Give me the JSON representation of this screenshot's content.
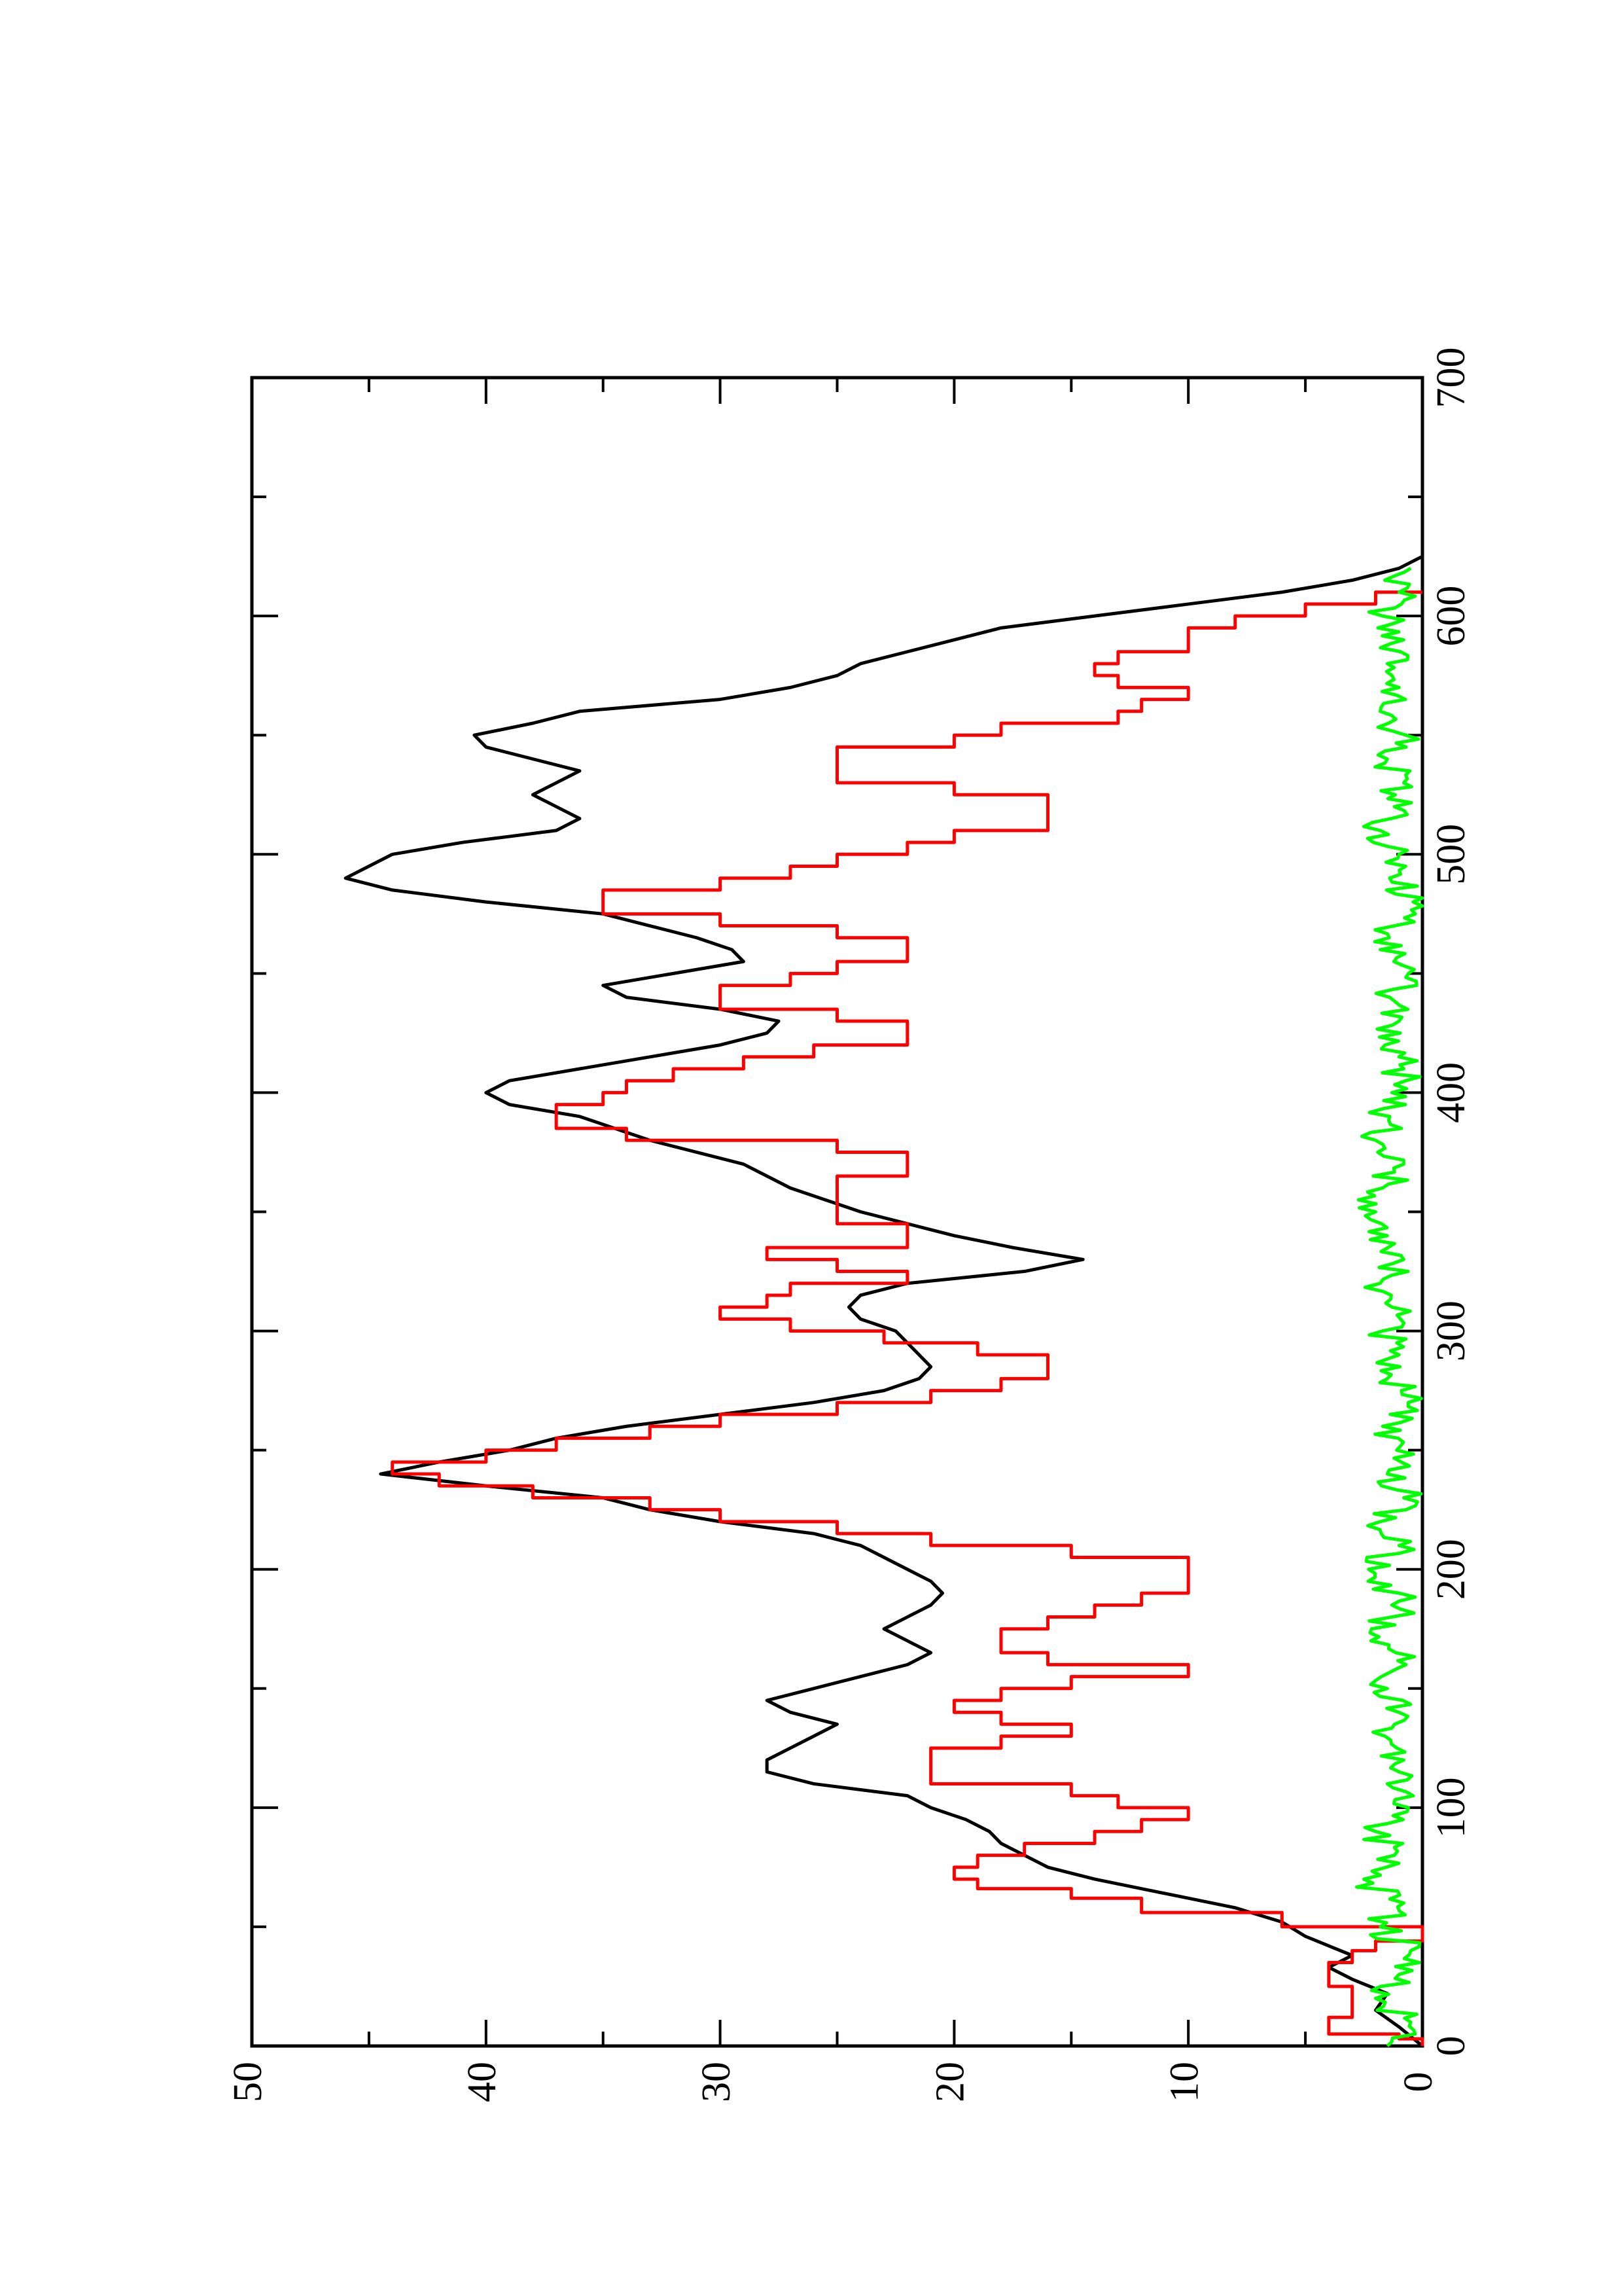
{
  "chart_data": {
    "type": "line",
    "orientation": "rotated-90-ccw",
    "title": "",
    "xlabel": "",
    "ylabel": "",
    "xlim": [
      0,
      700
    ],
    "ylim": [
      0,
      50
    ],
    "x_ticks": [
      0,
      100,
      200,
      300,
      400,
      500,
      600,
      700
    ],
    "y_ticks": [
      0,
      10,
      20,
      30,
      40,
      50
    ],
    "grid": false,
    "legend": "none",
    "series": [
      {
        "color": "#000000",
        "style": "line",
        "points": [
          [
            0,
            0
          ],
          [
            8,
            1
          ],
          [
            15,
            2
          ],
          [
            22,
            1.5
          ],
          [
            28,
            3
          ],
          [
            33,
            4
          ],
          [
            38,
            3
          ],
          [
            42,
            4
          ],
          [
            46,
            5
          ],
          [
            52,
            6
          ],
          [
            58,
            8
          ],
          [
            62,
            10
          ],
          [
            66,
            12
          ],
          [
            70,
            14
          ],
          [
            75,
            16
          ],
          [
            80,
            17
          ],
          [
            85,
            18
          ],
          [
            90,
            18.5
          ],
          [
            95,
            19.5
          ],
          [
            100,
            21
          ],
          [
            105,
            22
          ],
          [
            110,
            26
          ],
          [
            115,
            28
          ],
          [
            120,
            28
          ],
          [
            125,
            27
          ],
          [
            130,
            26
          ],
          [
            135,
            25
          ],
          [
            140,
            27
          ],
          [
            145,
            28
          ],
          [
            150,
            26
          ],
          [
            155,
            24
          ],
          [
            160,
            22
          ],
          [
            165,
            21
          ],
          [
            170,
            22
          ],
          [
            175,
            23
          ],
          [
            180,
            22
          ],
          [
            185,
            21
          ],
          [
            190,
            20.5
          ],
          [
            195,
            21
          ],
          [
            200,
            22
          ],
          [
            205,
            23
          ],
          [
            210,
            24
          ],
          [
            215,
            26
          ],
          [
            220,
            30
          ],
          [
            225,
            33
          ],
          [
            230,
            35
          ],
          [
            235,
            40
          ],
          [
            240,
            44.5
          ],
          [
            245,
            42
          ],
          [
            250,
            39
          ],
          [
            255,
            37
          ],
          [
            260,
            34
          ],
          [
            265,
            30
          ],
          [
            270,
            26
          ],
          [
            275,
            23
          ],
          [
            280,
            21.5
          ],
          [
            285,
            21
          ],
          [
            290,
            21.5
          ],
          [
            295,
            22
          ],
          [
            300,
            22.5
          ],
          [
            305,
            24
          ],
          [
            310,
            24.5
          ],
          [
            315,
            24
          ],
          [
            320,
            22
          ],
          [
            325,
            17
          ],
          [
            330,
            14.5
          ],
          [
            335,
            17.5
          ],
          [
            340,
            20
          ],
          [
            345,
            22
          ],
          [
            350,
            24
          ],
          [
            360,
            27
          ],
          [
            370,
            29
          ],
          [
            380,
            33
          ],
          [
            390,
            36
          ],
          [
            395,
            39
          ],
          [
            400,
            40
          ],
          [
            405,
            39
          ],
          [
            410,
            36
          ],
          [
            415,
            33
          ],
          [
            420,
            30
          ],
          [
            425,
            28
          ],
          [
            430,
            27.5
          ],
          [
            435,
            30
          ],
          [
            440,
            34
          ],
          [
            445,
            35
          ],
          [
            450,
            32
          ],
          [
            455,
            29
          ],
          [
            460,
            29.5
          ],
          [
            465,
            31
          ],
          [
            470,
            33
          ],
          [
            475,
            35
          ],
          [
            480,
            40
          ],
          [
            485,
            44
          ],
          [
            490,
            46
          ],
          [
            495,
            45
          ],
          [
            500,
            44
          ],
          [
            505,
            41
          ],
          [
            510,
            37
          ],
          [
            515,
            36
          ],
          [
            520,
            37
          ],
          [
            525,
            38
          ],
          [
            530,
            37
          ],
          [
            535,
            36
          ],
          [
            540,
            38
          ],
          [
            545,
            40
          ],
          [
            550,
            40.5
          ],
          [
            555,
            38
          ],
          [
            560,
            36
          ],
          [
            565,
            30
          ],
          [
            570,
            27
          ],
          [
            575,
            25
          ],
          [
            580,
            24
          ],
          [
            585,
            22
          ],
          [
            590,
            20
          ],
          [
            595,
            18
          ],
          [
            600,
            14
          ],
          [
            605,
            10
          ],
          [
            610,
            6
          ],
          [
            615,
            3
          ],
          [
            620,
            1
          ],
          [
            625,
            0
          ]
        ]
      },
      {
        "color": "#ff0000",
        "style": "step",
        "points": [
          [
            0,
            0
          ],
          [
            3,
            1
          ],
          [
            5,
            4
          ],
          [
            12,
            3
          ],
          [
            25,
            4
          ],
          [
            35,
            3
          ],
          [
            40,
            2
          ],
          [
            44,
            0
          ],
          [
            50,
            6
          ],
          [
            56,
            12
          ],
          [
            62,
            15
          ],
          [
            66,
            19
          ],
          [
            70,
            20
          ],
          [
            75,
            19
          ],
          [
            80,
            17
          ],
          [
            85,
            14
          ],
          [
            90,
            12
          ],
          [
            95,
            10
          ],
          [
            100,
            13
          ],
          [
            105,
            15
          ],
          [
            110,
            21
          ],
          [
            120,
            21
          ],
          [
            125,
            18
          ],
          [
            130,
            15
          ],
          [
            135,
            18
          ],
          [
            140,
            20
          ],
          [
            145,
            18
          ],
          [
            150,
            15
          ],
          [
            155,
            10
          ],
          [
            160,
            16
          ],
          [
            165,
            18
          ],
          [
            175,
            16
          ],
          [
            180,
            14
          ],
          [
            185,
            12
          ],
          [
            190,
            10
          ],
          [
            200,
            10
          ],
          [
            205,
            15
          ],
          [
            210,
            21
          ],
          [
            215,
            25
          ],
          [
            220,
            30
          ],
          [
            225,
            33
          ],
          [
            230,
            38
          ],
          [
            235,
            42
          ],
          [
            240,
            44
          ],
          [
            245,
            40
          ],
          [
            250,
            37
          ],
          [
            255,
            33
          ],
          [
            260,
            30
          ],
          [
            265,
            25
          ],
          [
            270,
            21
          ],
          [
            275,
            18
          ],
          [
            280,
            16
          ],
          [
            285,
            16
          ],
          [
            290,
            19
          ],
          [
            295,
            23
          ],
          [
            300,
            27
          ],
          [
            305,
            30
          ],
          [
            310,
            28
          ],
          [
            315,
            27
          ],
          [
            320,
            22
          ],
          [
            325,
            25
          ],
          [
            330,
            28
          ],
          [
            335,
            22
          ],
          [
            340,
            22
          ],
          [
            345,
            25
          ],
          [
            350,
            25
          ],
          [
            360,
            25
          ],
          [
            365,
            22
          ],
          [
            370,
            22
          ],
          [
            375,
            25
          ],
          [
            380,
            34
          ],
          [
            385,
            37
          ],
          [
            390,
            37
          ],
          [
            395,
            35
          ],
          [
            400,
            34
          ],
          [
            405,
            32
          ],
          [
            410,
            29
          ],
          [
            415,
            26
          ],
          [
            420,
            22
          ],
          [
            425,
            22
          ],
          [
            430,
            25
          ],
          [
            435,
            30
          ],
          [
            440,
            30
          ],
          [
            445,
            27
          ],
          [
            450,
            25
          ],
          [
            455,
            22
          ],
          [
            460,
            22
          ],
          [
            465,
            25
          ],
          [
            470,
            30
          ],
          [
            475,
            35
          ],
          [
            480,
            35
          ],
          [
            485,
            30
          ],
          [
            490,
            27
          ],
          [
            495,
            25
          ],
          [
            500,
            22
          ],
          [
            505,
            20
          ],
          [
            510,
            16
          ],
          [
            520,
            16
          ],
          [
            525,
            20
          ],
          [
            530,
            25
          ],
          [
            540,
            25
          ],
          [
            545,
            20
          ],
          [
            550,
            18
          ],
          [
            555,
            13
          ],
          [
            560,
            12
          ],
          [
            565,
            10
          ],
          [
            570,
            13
          ],
          [
            575,
            14
          ],
          [
            580,
            13
          ],
          [
            585,
            10
          ],
          [
            590,
            10
          ],
          [
            595,
            8
          ],
          [
            600,
            5
          ],
          [
            605,
            2
          ],
          [
            610,
            0
          ]
        ]
      },
      {
        "color": "#00ff00",
        "style": "noisy-line",
        "points": [
          [
            0,
            1.5
          ],
          [
            10,
            0.5
          ],
          [
            20,
            2
          ],
          [
            30,
            1
          ],
          [
            40,
            0.5
          ],
          [
            50,
            1.8
          ],
          [
            60,
            0.8
          ],
          [
            70,
            2.5
          ],
          [
            80,
            1.2
          ],
          [
            90,
            2
          ],
          [
            100,
            0.6
          ],
          [
            110,
            1.5
          ],
          [
            120,
            0.8
          ],
          [
            130,
            1.6
          ],
          [
            140,
            1
          ],
          [
            150,
            1.5
          ],
          [
            160,
            0.7
          ],
          [
            170,
            2.2
          ],
          [
            180,
            1.3
          ],
          [
            190,
            1
          ],
          [
            200,
            2.3
          ],
          [
            210,
            1
          ],
          [
            220,
            1.8
          ],
          [
            230,
            0.8
          ],
          [
            240,
            1.5
          ],
          [
            250,
            1.1
          ],
          [
            260,
            1.7
          ],
          [
            270,
            0.6
          ],
          [
            280,
            1.5
          ],
          [
            290,
            1
          ],
          [
            300,
            1.7
          ],
          [
            310,
            1.3
          ],
          [
            320,
            1.8
          ],
          [
            330,
            0.8
          ],
          [
            340,
            1.5
          ],
          [
            350,
            2
          ],
          [
            360,
            1.7
          ],
          [
            370,
            0.8
          ],
          [
            380,
            2
          ],
          [
            390,
            1.4
          ],
          [
            400,
            1.3
          ],
          [
            410,
            0.8
          ],
          [
            420,
            1.6
          ],
          [
            430,
            1
          ],
          [
            440,
            1.4
          ],
          [
            450,
            0.6
          ],
          [
            460,
            1.8
          ],
          [
            470,
            1.2
          ],
          [
            480,
            0.4
          ],
          [
            490,
            1.4
          ],
          [
            500,
            1
          ],
          [
            510,
            1.8
          ],
          [
            520,
            1.2
          ],
          [
            530,
            0.8
          ],
          [
            540,
            1.5
          ],
          [
            550,
            0.7
          ],
          [
            560,
            1.8
          ],
          [
            570,
            1
          ],
          [
            580,
            1.5
          ],
          [
            590,
            0.8
          ],
          [
            600,
            1.7
          ],
          [
            610,
            1
          ],
          [
            620,
            0.5
          ]
        ]
      }
    ]
  }
}
